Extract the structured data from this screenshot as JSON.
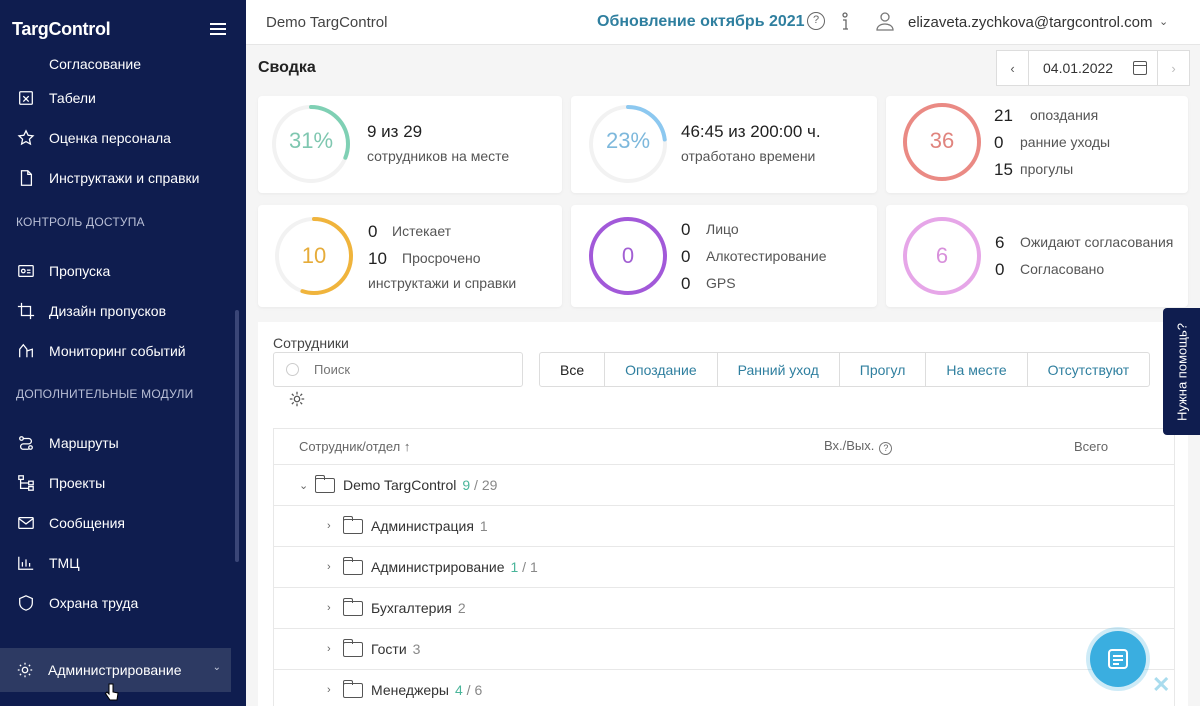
{
  "sidebar": {
    "logo": "TargControl",
    "partial_item": "Согласование",
    "items_top": [
      {
        "label": "Табели",
        "icon": "timesheet-icon"
      },
      {
        "label": "Оценка персонала",
        "icon": "star-icon"
      },
      {
        "label": "Инструктажи и справки",
        "icon": "document-icon"
      }
    ],
    "section_access": "КОНТРОЛЬ ДОСТУПА",
    "items_access": [
      {
        "label": "Пропуска",
        "icon": "badge-icon"
      },
      {
        "label": "Дизайн пропусков",
        "icon": "crop-icon"
      },
      {
        "label": "Мониторинг событий",
        "icon": "monitoring-icon"
      }
    ],
    "section_modules": "ДОПОЛНИТЕЛЬНЫЕ МОДУЛИ",
    "items_modules": [
      {
        "label": "Маршруты",
        "icon": "route-icon"
      },
      {
        "label": "Проекты",
        "icon": "projects-icon"
      },
      {
        "label": "Сообщения",
        "icon": "mail-icon"
      },
      {
        "label": "ТМЦ",
        "icon": "inventory-icon"
      },
      {
        "label": "Охрана труда",
        "icon": "shield-icon"
      }
    ],
    "active_item": "Администрирование"
  },
  "topbar": {
    "company": "Demo TargControl",
    "update_link": "Обновление октябрь 2021",
    "user_email": "elizaveta.zychkova@targcontrol.com"
  },
  "summary": {
    "title": "Сводка",
    "date": "04.01.2022",
    "card1": {
      "percent": "31%",
      "value": "9 из 29",
      "caption": "сотрудников на месте",
      "fraction": 0.31,
      "color": "#7fd0b4"
    },
    "card2": {
      "percent": "23%",
      "value": "46:45 из 200:00 ч.",
      "caption": "отработано времени",
      "fraction": 0.23,
      "color": "#8cc8f0"
    },
    "card3": {
      "ring": "36",
      "color": "#ea8a84",
      "rows": [
        {
          "n": "21",
          "label": "опоздания"
        },
        {
          "n": "0",
          "label": "ранние уходы"
        },
        {
          "n": "15",
          "label": "прогулы"
        }
      ]
    },
    "card4": {
      "ring": "10",
      "color": "#f0b43c",
      "fraction": 0.55,
      "rows": [
        {
          "n": "0",
          "label": "Истекает"
        },
        {
          "n": "10",
          "label": "Просрочено"
        }
      ],
      "caption": "инструктажи и справки"
    },
    "card5": {
      "ring": "0",
      "color": "#a259d9",
      "rows": [
        {
          "n": "0",
          "label": "Лицо"
        },
        {
          "n": "0",
          "label": "Алкотестирование"
        },
        {
          "n": "0",
          "label": "GPS"
        }
      ]
    },
    "card6": {
      "ring": "6",
      "color": "#e6a6e8",
      "rows": [
        {
          "n": "6",
          "label": "Ожидают согласования"
        },
        {
          "n": "0",
          "label": "Согласовано"
        }
      ]
    }
  },
  "employees": {
    "title": "Сотрудники",
    "search_placeholder": "Поиск",
    "filters": [
      "Все",
      "Опоздание",
      "Ранний уход",
      "Прогул",
      "На месте",
      "Отсутствуют"
    ],
    "columns": [
      "Сотрудник/отдел",
      "Вх./Вых.",
      "Всего"
    ],
    "rows": [
      {
        "name": "Demo TargControl",
        "present": "9",
        "sep": " / ",
        "total": "29"
      },
      {
        "name": "Администрация",
        "present": "",
        "sep": "",
        "total": "1"
      },
      {
        "name": "Администрирование",
        "present": "1",
        "sep": " / ",
        "total": "1"
      },
      {
        "name": "Бухгалтерия",
        "present": "",
        "sep": "",
        "total": "2"
      },
      {
        "name": "Гости",
        "present": "",
        "sep": "",
        "total": "3"
      },
      {
        "name": "Менеджеры",
        "present": "4",
        "sep": " / ",
        "total": "6"
      }
    ]
  },
  "help_tab": "Нужна помощь?",
  "colors": {
    "sidebar": "#0f1d4f",
    "accent": "#2f7f9f",
    "green": "#49b59a"
  }
}
